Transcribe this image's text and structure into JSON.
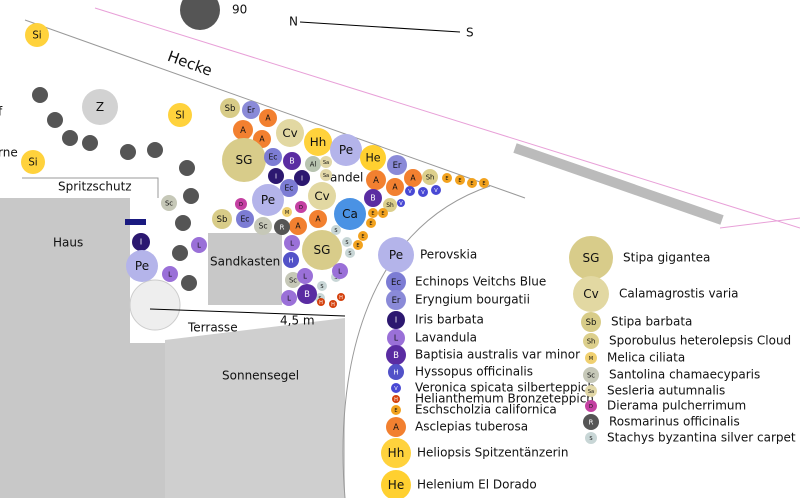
{
  "labels": {
    "size_90": "90",
    "north": "N",
    "south": "S",
    "hedge": "Hecke",
    "splash_guard": "Spritzschutz",
    "house": "Haus",
    "sandbox": "Sandkasten",
    "terrace": "Terrasse",
    "distance": "4,5 m",
    "sun_sail": "Sonnensegel",
    "cut_left_1": "f",
    "cut_left_2": "rne",
    "almond": "andel"
  },
  "legend": [
    {
      "abbr": "Pe",
      "name": "Perovskia",
      "color": "#b4b4ea"
    },
    {
      "abbr": "Ec",
      "name": "Echinops Veitchs Blue",
      "color": "#7c7cd4"
    },
    {
      "abbr": "Er",
      "name": "Eryngium bourgatii",
      "color": "#8a8ad8"
    },
    {
      "abbr": "I",
      "name": "Iris barbata",
      "color": "#2c1870"
    },
    {
      "abbr": "L",
      "name": "Lavandula",
      "color": "#9a70d8"
    },
    {
      "abbr": "B",
      "name": "Baptisia australis var minor",
      "color": "#5a2ca2"
    },
    {
      "abbr": "H",
      "name": "Hyssopus officinalis",
      "color": "#5252c8"
    },
    {
      "abbr": "V",
      "name": "Veronica spicata silberteppich",
      "color": "#4848d4"
    },
    {
      "abbr": "H",
      "name": "Helianthemum Bronzeteppich",
      "color": "#d4420e"
    },
    {
      "abbr": "E",
      "name": "Eschscholzia californica",
      "color": "#f2a21e"
    },
    {
      "abbr": "A",
      "name": "Asclepias tuberosa",
      "color": "#f28030"
    },
    {
      "abbr": "Hh",
      "name": "Heliopsis Spitzentänzerin",
      "color": "#ffd23c"
    },
    {
      "abbr": "He",
      "name": "Helenium El Dorado",
      "color": "#ffd030"
    },
    {
      "abbr": "SG",
      "name": "Stipa gigantea",
      "color": "#d8cc8a"
    },
    {
      "abbr": "Cv",
      "name": "Calamagrostis varia",
      "color": "#e2d8a2"
    },
    {
      "abbr": "Sb",
      "name": "Stipa barbata",
      "color": "#d8cc88"
    },
    {
      "abbr": "Sh",
      "name": "Sporobulus heterolepsis Cloud",
      "color": "#dccf8c"
    },
    {
      "abbr": "M",
      "name": "Melica ciliata",
      "color": "#f0d070"
    },
    {
      "abbr": "Sc",
      "name": "Santolina chamaecyparis",
      "color": "#c6c8b8"
    },
    {
      "abbr": "Sa",
      "name": "Sesleria autumnalis",
      "color": "#e2d8a8"
    },
    {
      "abbr": "D",
      "name": "Dierama pulcherrimum",
      "color": "#c440a2"
    },
    {
      "abbr": "R",
      "name": "Rosmarinus officinalis",
      "color": "#555555"
    },
    {
      "abbr": "S",
      "name": "Stachys byzantina silver carpet",
      "color": "#c8d6d6"
    }
  ],
  "other_plants": [
    {
      "abbr": "Si",
      "color": "#ffd23c"
    },
    {
      "abbr": "Sl",
      "color": "#ffd23c"
    },
    {
      "abbr": "Z",
      "color": "#d2d2d2"
    },
    {
      "abbr": "Al",
      "color": "#b8c4b0"
    },
    {
      "abbr": "Ca",
      "color": "#4a92e4"
    }
  ]
}
